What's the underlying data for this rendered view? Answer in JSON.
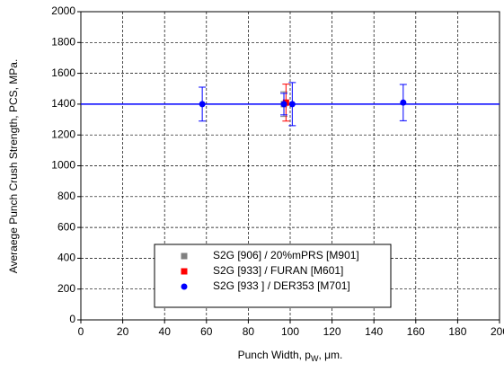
{
  "chart_data": {
    "type": "scatter",
    "x_label": "Punch Width, p",
    "x_label_sub": "W",
    "x_label_end": ", μm.",
    "y_label": "Averaege Punch Crush Strength, PCS, MPa.",
    "xlim": [
      0,
      200
    ],
    "xticks": [
      0,
      20,
      40,
      60,
      80,
      100,
      120,
      140,
      160,
      180,
      200
    ],
    "ylim": [
      0,
      2000
    ],
    "yticks": [
      0,
      200,
      400,
      600,
      800,
      1000,
      1200,
      1400,
      1600,
      1800,
      2000
    ],
    "grid": true,
    "legend": "lower center",
    "hline": {
      "value": 1400,
      "color": "#0000ff"
    },
    "series": [
      {
        "name": "S2G [906] / 20%mPRS [M901]",
        "color": "#808080",
        "marker": "square",
        "x": [
          97
        ],
        "values": [
          1400
        ],
        "errors": [
          80
        ]
      },
      {
        "name": "S2G [933] / FURAN [M601]",
        "color": "#ff0000",
        "marker": "square",
        "x": [
          98
        ],
        "values": [
          1410
        ],
        "errors": [
          120
        ]
      },
      {
        "name": "S2G [933 ] / DER353 [M701]",
        "color": "#0000ff",
        "marker": "circle",
        "x": [
          58,
          97,
          101,
          154
        ],
        "values": [
          1400,
          1400,
          1400,
          1410
        ],
        "errors": [
          110,
          70,
          140,
          118
        ]
      }
    ]
  }
}
